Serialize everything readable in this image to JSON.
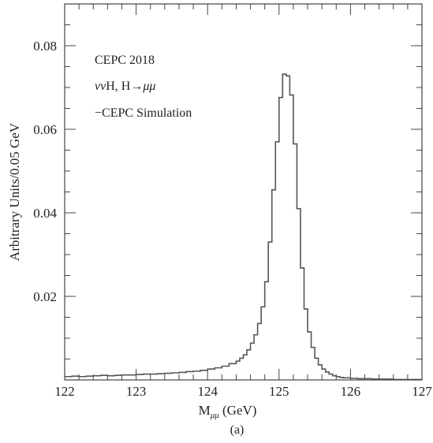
{
  "chart_data": {
    "type": "line",
    "step": true,
    "xlabel_main": "M",
    "xlabel_sub": "μμ",
    "xlabel_unit": " (GeV)",
    "ylabel": "Arbitrary Units/0.05 GeV",
    "caption": "(a)",
    "xlim": [
      122,
      127
    ],
    "ylim": [
      0,
      0.09
    ],
    "xticks": [
      "122",
      "123",
      "124",
      "125",
      "126",
      "127"
    ],
    "yticks": [
      {
        "v": 0.02,
        "label": "0.02"
      },
      {
        "v": 0.04,
        "label": "0.04"
      },
      {
        "v": 0.06,
        "label": "0.06"
      },
      {
        "v": 0.08,
        "label": "0.08"
      }
    ],
    "annotations": {
      "line1": "CEPC 2018",
      "line2_pre": "νν",
      "line2_mid": "H, H→",
      "line2_post": "μμ",
      "line3": "−CEPC Simulation"
    },
    "series_color": "#555555",
    "series": [
      {
        "x": [
          122.0,
          122.1,
          122.2,
          122.3,
          122.4,
          122.5,
          122.6,
          122.7,
          122.8,
          122.9,
          123.0,
          123.1,
          123.2,
          123.3,
          123.4,
          123.5,
          123.6,
          123.7,
          123.8,
          123.9,
          124.0,
          124.1,
          124.2,
          124.3,
          124.4,
          124.45,
          124.5,
          124.55,
          124.6,
          124.65,
          124.7,
          124.75,
          124.8,
          124.85,
          124.9,
          124.95,
          125.0,
          125.05,
          125.1,
          125.15,
          125.2,
          125.25,
          125.3,
          125.35,
          125.4,
          125.45,
          125.5,
          125.55,
          125.6,
          125.65,
          125.7,
          125.75,
          125.8,
          125.85,
          125.9,
          126.0,
          126.1,
          126.2,
          126.3,
          126.4,
          126.5,
          126.6,
          126.7,
          126.8,
          126.9,
          127.0
        ],
        "y": [
          0.0008,
          0.0009,
          0.0008,
          0.0009,
          0.001,
          0.0011,
          0.001,
          0.0011,
          0.0012,
          0.0012,
          0.0013,
          0.0014,
          0.0014,
          0.0015,
          0.0016,
          0.0017,
          0.0018,
          0.002,
          0.0021,
          0.0023,
          0.0026,
          0.0029,
          0.0033,
          0.0039,
          0.0045,
          0.0052,
          0.006,
          0.0072,
          0.0088,
          0.0108,
          0.0135,
          0.0175,
          0.0235,
          0.033,
          0.0455,
          0.057,
          0.0676,
          0.0732,
          0.0728,
          0.0682,
          0.0565,
          0.041,
          0.0268,
          0.017,
          0.0115,
          0.0078,
          0.0052,
          0.0036,
          0.0026,
          0.0019,
          0.0014,
          0.001,
          0.0008,
          0.0006,
          0.0005,
          0.0004,
          0.0003,
          0.0003,
          0.0002,
          0.0002,
          0.0002,
          0.0001,
          0.0001,
          0.0001,
          0.0001,
          0.0001
        ]
      }
    ]
  }
}
